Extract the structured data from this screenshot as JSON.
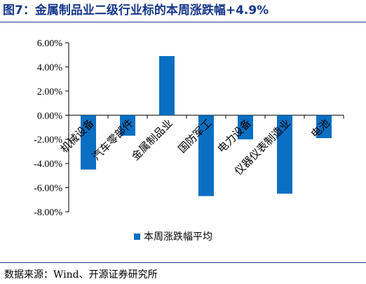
{
  "figure": {
    "title": "图7：金属制品业二级行业标的本周涨跌幅+4.9%",
    "source": "数据来源：Wind、开源证券研究所"
  },
  "colors": {
    "bar": "#0a6fc2",
    "axis": "#000000",
    "title": "#16378a"
  },
  "chart_data": {
    "type": "bar",
    "categories": [
      "机械设备",
      "汽车零部件",
      "金属制品业",
      "国防军工",
      "电力设备",
      "仪器仪表制造业",
      "电池"
    ],
    "series": [
      {
        "name": "本周涨跌幅平均",
        "values": [
          -4.5,
          -1.7,
          4.9,
          -6.7,
          -2.0,
          -6.5,
          -1.9
        ]
      }
    ],
    "yticks": [
      "6.00%",
      "4.00%",
      "2.00%",
      "0.00%",
      "-2.00%",
      "-4.00%",
      "-6.00%",
      "-8.00%"
    ],
    "ylim": [
      -8,
      6
    ],
    "grid": false,
    "legend_position": "bottom"
  }
}
